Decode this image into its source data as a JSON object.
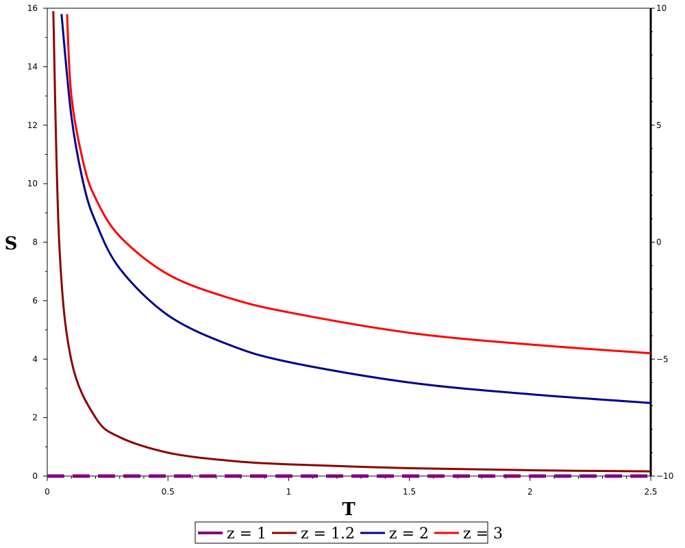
{
  "chart_data": {
    "type": "line",
    "xlabel": "T",
    "ylabel": "S",
    "xlim": [
      0,
      2.5
    ],
    "ylim": [
      0,
      16
    ],
    "y2lim": [
      -10,
      10
    ],
    "x_ticks": [
      "0",
      "0.5",
      "1",
      "1.5",
      "2",
      "2.5"
    ],
    "y_ticks": [
      "0",
      "2",
      "4",
      "6",
      "8",
      "10",
      "12",
      "14",
      "16"
    ],
    "y2_ticks": [
      "−10",
      "−5",
      "0",
      "5",
      "10"
    ],
    "grid": false,
    "legend_position": "bottom-center",
    "series": [
      {
        "name": "z = 1",
        "color": "#800080",
        "dashed": true,
        "x": [
          0,
          0.5,
          1,
          1.5,
          2,
          2.5
        ],
        "y": [
          0,
          0,
          0,
          0,
          0,
          0
        ]
      },
      {
        "name": "z = 1.2",
        "color": "#8b0000",
        "dashed": false,
        "x": [
          0.025,
          0.05,
          0.1,
          0.2,
          0.3,
          0.5,
          0.75,
          1,
          1.5,
          2,
          2.5
        ],
        "y": [
          15.9,
          7.9,
          3.95,
          2.0,
          1.33,
          0.8,
          0.53,
          0.4,
          0.27,
          0.2,
          0.16
        ]
      },
      {
        "name": "z = 2",
        "color": "#00008b",
        "dashed": false,
        "x": [
          0.059,
          0.1,
          0.15,
          0.2,
          0.3,
          0.5,
          0.75,
          1,
          1.5,
          2,
          2.5
        ],
        "y": [
          15.8,
          12.3,
          10.0,
          8.7,
          7.1,
          5.5,
          4.5,
          3.9,
          3.2,
          2.8,
          2.5
        ]
      },
      {
        "name": "z = 3",
        "color": "#ff0000",
        "dashed": false,
        "x": [
          0.082,
          0.1,
          0.15,
          0.2,
          0.3,
          0.5,
          0.75,
          1,
          1.5,
          2,
          2.5
        ],
        "y": [
          15.8,
          13.0,
          10.7,
          9.5,
          8.2,
          6.9,
          6.1,
          5.6,
          4.9,
          4.5,
          4.2
        ]
      }
    ]
  }
}
